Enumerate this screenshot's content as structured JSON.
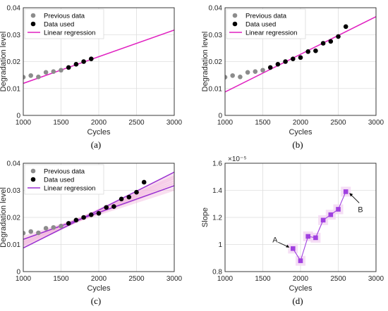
{
  "chart_data": [
    {
      "type": "scatter",
      "panel": "a",
      "caption": "(a)",
      "xlabel": "Cycles",
      "ylabel": "Degradation level",
      "xlim": [
        1000,
        3000
      ],
      "ylim": [
        0,
        0.04
      ],
      "xticks": [
        "1000",
        "1500",
        "2000",
        "2500",
        "3000"
      ],
      "yticks": [
        "0",
        "0.01",
        "0.02",
        "0.03",
        "0.04"
      ],
      "legend_position": "top-left",
      "series": [
        {
          "name": "Previous data",
          "kind": "points",
          "color": "#8c8c8c",
          "x": [
            1000,
            1100,
            1200,
            1300,
            1400,
            1500
          ],
          "y": [
            0.0142,
            0.0148,
            0.0143,
            0.016,
            0.0163,
            0.0168
          ]
        },
        {
          "name": "Data used",
          "kind": "points",
          "color": "#000000",
          "x": [
            1600,
            1700,
            1800,
            1900
          ],
          "y": [
            0.0178,
            0.019,
            0.02,
            0.021
          ]
        },
        {
          "name": "Linear regression",
          "kind": "line",
          "color": "#e020c0",
          "x": [
            1000,
            3000
          ],
          "y": [
            0.0119,
            0.0317
          ]
        }
      ]
    },
    {
      "type": "scatter",
      "panel": "b",
      "caption": "(b)",
      "xlabel": "Cycles",
      "ylabel": "Degradation level",
      "xlim": [
        1000,
        3000
      ],
      "ylim": [
        0,
        0.04
      ],
      "xticks": [
        "1000",
        "1500",
        "2000",
        "2500",
        "3000"
      ],
      "yticks": [
        "0",
        "0.01",
        "0.02",
        "0.03",
        "0.04"
      ],
      "legend_position": "top-left",
      "series": [
        {
          "name": "Previous data",
          "kind": "points",
          "color": "#8c8c8c",
          "x": [
            1000,
            1100,
            1200,
            1300,
            1400,
            1500
          ],
          "y": [
            0.0142,
            0.0148,
            0.0143,
            0.016,
            0.0163,
            0.0168
          ]
        },
        {
          "name": "Data used",
          "kind": "points",
          "color": "#000000",
          "x": [
            1600,
            1700,
            1800,
            1900,
            2000,
            2100,
            2200,
            2300,
            2400,
            2500,
            2600
          ],
          "y": [
            0.0178,
            0.019,
            0.02,
            0.021,
            0.0215,
            0.0237,
            0.024,
            0.0268,
            0.0275,
            0.0293,
            0.033
          ]
        },
        {
          "name": "Linear regression",
          "kind": "line",
          "color": "#e020c0",
          "x": [
            1000,
            3000
          ],
          "y": [
            0.0087,
            0.0367
          ]
        }
      ]
    },
    {
      "type": "scatter",
      "panel": "c",
      "caption": "(c)",
      "xlabel": "Cycles",
      "ylabel": "Degradation level",
      "xlim": [
        1000,
        3000
      ],
      "ylim": [
        0,
        0.04
      ],
      "xticks": [
        "1000",
        "1500",
        "2000",
        "2500",
        "3000"
      ],
      "yticks": [
        "0",
        "0.01",
        "0.02",
        "0.03",
        "0.04"
      ],
      "legend_position": "top-left",
      "series": [
        {
          "name": "Previous data",
          "kind": "points",
          "color": "#8c8c8c",
          "x": [
            1000,
            1100,
            1200,
            1300,
            1400,
            1500
          ],
          "y": [
            0.0142,
            0.0148,
            0.0143,
            0.016,
            0.0163,
            0.0168
          ]
        },
        {
          "name": "Data used",
          "kind": "points",
          "color": "#000000",
          "x": [
            1600,
            1700,
            1800,
            1900,
            2000,
            2100,
            2200,
            2300,
            2400,
            2500,
            2600
          ],
          "y": [
            0.0178,
            0.019,
            0.02,
            0.021,
            0.0215,
            0.0237,
            0.024,
            0.0268,
            0.0275,
            0.0293,
            0.033
          ]
        },
        {
          "name": "Linear regression",
          "kind": "line",
          "color": "#9a2fd0",
          "x": [
            1000,
            3000
          ],
          "y": [
            0.0087,
            0.0367
          ]
        },
        {
          "kind": "line",
          "color": "#9a2fd0",
          "x": [
            1000,
            3000
          ],
          "y": [
            0.0119,
            0.0317
          ]
        },
        {
          "kind": "band",
          "color": "#f2b8dd",
          "lines": [
            {
              "x": [
                1000,
                3000
              ],
              "y": [
                0.0112,
                0.033
              ]
            },
            {
              "x": [
                1000,
                3000
              ],
              "y": [
                0.0105,
                0.034
              ]
            },
            {
              "x": [
                1000,
                3000
              ],
              "y": [
                0.01,
                0.0348
              ]
            },
            {
              "x": [
                1000,
                3000
              ],
              "y": [
                0.0095,
                0.0356
              ]
            },
            {
              "x": [
                1000,
                3000
              ],
              "y": [
                0.0125,
                0.0305
              ]
            },
            {
              "x": [
                1000,
                3000
              ],
              "y": [
                0.0115,
                0.0322
              ]
            }
          ]
        }
      ]
    },
    {
      "type": "line",
      "panel": "d",
      "caption": "(d)",
      "xlabel": "Cycles",
      "ylabel": "Slope",
      "exponent_label": "×10⁻⁵",
      "xlim": [
        1000,
        3000
      ],
      "ylim": [
        0.8,
        1.6
      ],
      "xticks": [
        "1000",
        "1500",
        "2000",
        "2500",
        "3000"
      ],
      "yticks": [
        "0.8",
        "1",
        "1.2",
        "1.4",
        "1.6"
      ],
      "series": [
        {
          "kind": "markers-line",
          "color": "#a040e0",
          "x": [
            1900,
            2000,
            2100,
            2200,
            2300,
            2400,
            2500,
            2600
          ],
          "y": [
            0.97,
            0.88,
            1.06,
            1.05,
            1.18,
            1.22,
            1.26,
            1.39
          ]
        }
      ],
      "annotations": [
        {
          "text": "A",
          "x": 1900,
          "y": 0.97
        },
        {
          "text": "B",
          "x": 2600,
          "y": 1.39
        }
      ]
    }
  ]
}
